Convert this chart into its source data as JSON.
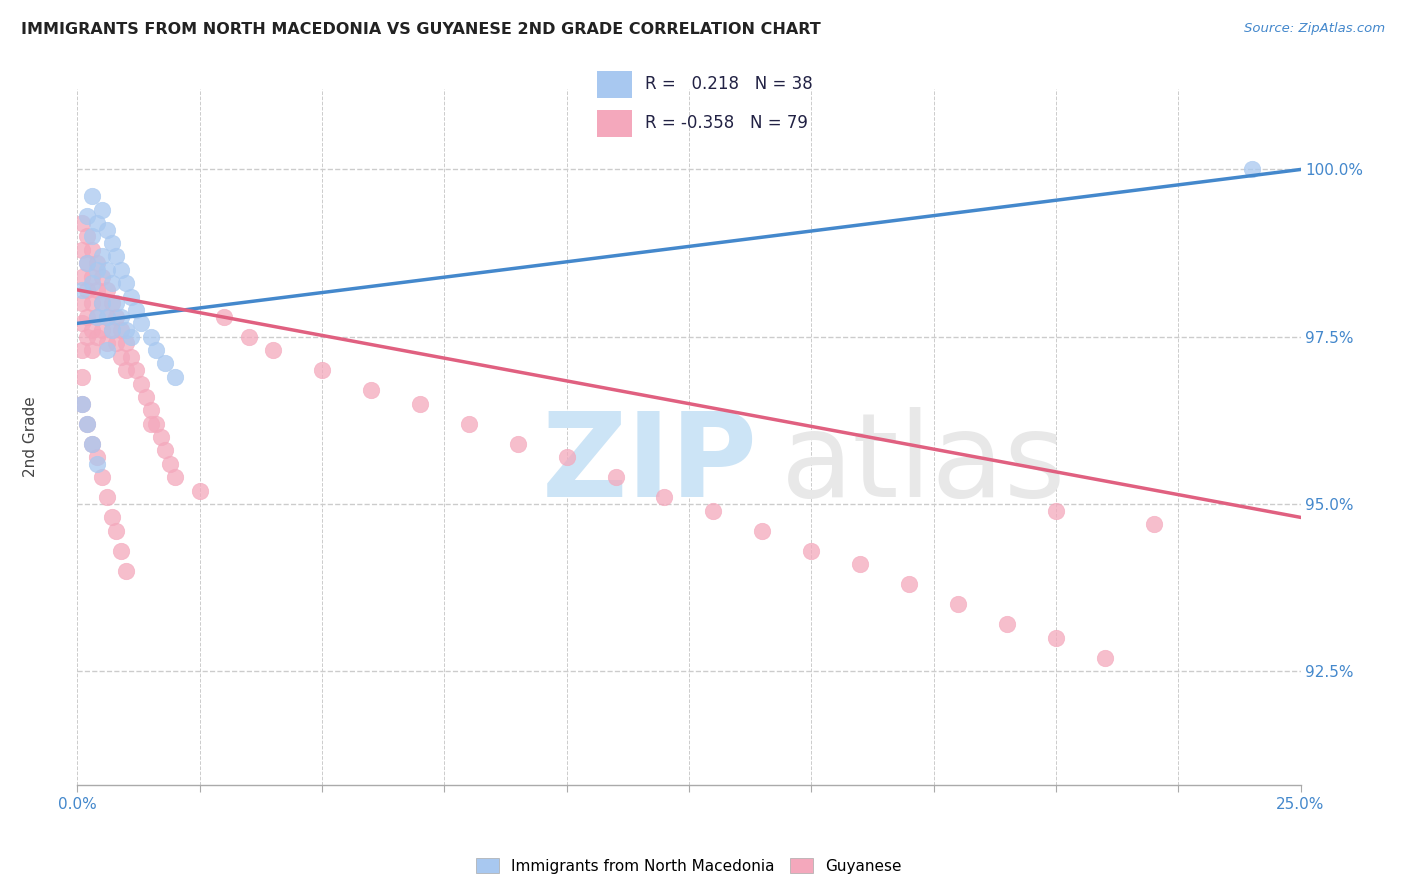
{
  "title": "IMMIGRANTS FROM NORTH MACEDONIA VS GUYANESE 2ND GRADE CORRELATION CHART",
  "source": "Source: ZipAtlas.com",
  "ylabel": "2nd Grade",
  "xmin": 0.0,
  "xmax": 0.25,
  "ymin": 90.8,
  "ymax": 101.2,
  "legend_r_blue": "0.218",
  "legend_n_blue": "38",
  "legend_r_pink": "-0.358",
  "legend_n_pink": "79",
  "legend_label_blue": "Immigrants from North Macedonia",
  "legend_label_pink": "Guyanese",
  "blue_dot_color": "#A8C8F0",
  "pink_dot_color": "#F4A8BC",
  "blue_line_color": "#4488CC",
  "pink_line_color": "#E06080",
  "title_color": "#222222",
  "source_color": "#4488CC",
  "axis_color": "#4488CC",
  "grid_color": "#CCCCCC",
  "blue_x": [
    0.001,
    0.002,
    0.002,
    0.003,
    0.003,
    0.003,
    0.004,
    0.004,
    0.004,
    0.005,
    0.005,
    0.005,
    0.006,
    0.006,
    0.006,
    0.007,
    0.007,
    0.007,
    0.008,
    0.008,
    0.009,
    0.009,
    0.01,
    0.01,
    0.011,
    0.011,
    0.012,
    0.013,
    0.015,
    0.016,
    0.018,
    0.02,
    0.001,
    0.002,
    0.003,
    0.004,
    0.24,
    0.006
  ],
  "blue_y": [
    98.2,
    99.3,
    98.6,
    99.6,
    99.0,
    98.3,
    99.2,
    98.5,
    97.8,
    99.4,
    98.7,
    98.0,
    99.1,
    98.5,
    97.8,
    98.9,
    98.3,
    97.6,
    98.7,
    98.0,
    98.5,
    97.8,
    98.3,
    97.6,
    98.1,
    97.5,
    97.9,
    97.7,
    97.5,
    97.3,
    97.1,
    96.9,
    96.5,
    96.2,
    95.9,
    95.6,
    100.0,
    97.3
  ],
  "pink_x": [
    0.001,
    0.001,
    0.001,
    0.001,
    0.001,
    0.001,
    0.001,
    0.002,
    0.002,
    0.002,
    0.002,
    0.002,
    0.003,
    0.003,
    0.003,
    0.003,
    0.003,
    0.004,
    0.004,
    0.004,
    0.004,
    0.005,
    0.005,
    0.005,
    0.006,
    0.006,
    0.006,
    0.007,
    0.007,
    0.008,
    0.008,
    0.009,
    0.009,
    0.01,
    0.01,
    0.011,
    0.012,
    0.013,
    0.014,
    0.015,
    0.016,
    0.017,
    0.018,
    0.019,
    0.02,
    0.025,
    0.03,
    0.035,
    0.04,
    0.05,
    0.06,
    0.07,
    0.08,
    0.09,
    0.1,
    0.11,
    0.12,
    0.13,
    0.14,
    0.15,
    0.16,
    0.17,
    0.18,
    0.19,
    0.2,
    0.21,
    0.001,
    0.002,
    0.003,
    0.004,
    0.005,
    0.006,
    0.007,
    0.008,
    0.009,
    0.01,
    0.2,
    0.22,
    0.015
  ],
  "pink_y": [
    99.2,
    98.8,
    98.4,
    98.0,
    97.7,
    97.3,
    96.9,
    99.0,
    98.6,
    98.2,
    97.8,
    97.5,
    98.8,
    98.4,
    98.0,
    97.6,
    97.3,
    98.6,
    98.2,
    97.8,
    97.5,
    98.4,
    98.0,
    97.6,
    98.2,
    97.8,
    97.4,
    98.0,
    97.6,
    97.8,
    97.4,
    97.6,
    97.2,
    97.4,
    97.0,
    97.2,
    97.0,
    96.8,
    96.6,
    96.4,
    96.2,
    96.0,
    95.8,
    95.6,
    95.4,
    95.2,
    97.8,
    97.5,
    97.3,
    97.0,
    96.7,
    96.5,
    96.2,
    95.9,
    95.7,
    95.4,
    95.1,
    94.9,
    94.6,
    94.3,
    94.1,
    93.8,
    93.5,
    93.2,
    93.0,
    92.7,
    96.5,
    96.2,
    95.9,
    95.7,
    95.4,
    95.1,
    94.8,
    94.6,
    94.3,
    94.0,
    94.9,
    94.7,
    96.2
  ],
  "blue_line_x0": 0.0,
  "blue_line_x1": 0.25,
  "blue_line_y0": 97.7,
  "blue_line_y1": 100.0,
  "pink_line_x0": 0.0,
  "pink_line_x1": 0.25,
  "pink_line_y0": 98.2,
  "pink_line_y1": 94.8
}
